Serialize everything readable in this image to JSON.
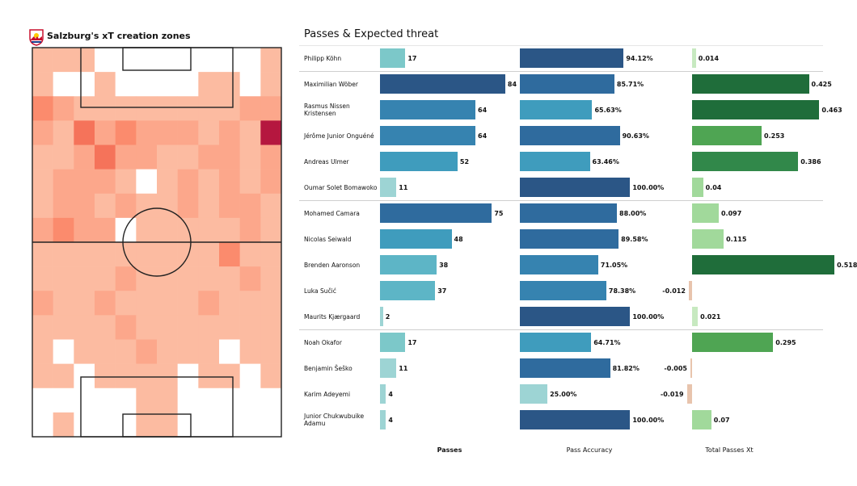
{
  "pitch_title": "Salzburg's xT creation zones",
  "logo_icon": "red-bull-salzburg-crest",
  "table_title": "Passes & Expected threat",
  "headers": {
    "passes": "Passes",
    "accuracy": "Pass Accuracy",
    "xt": "Total Passes Xt"
  },
  "chart_data": [
    {
      "type": "heatmap",
      "title": "Salzburg's xT creation zones",
      "grid": [
        [
          1,
          1,
          1,
          0,
          0,
          0,
          0,
          0,
          0,
          0,
          0,
          1
        ],
        [
          1,
          0,
          0,
          1,
          0,
          0,
          0,
          0,
          1,
          1,
          0,
          1
        ],
        [
          3,
          2,
          1,
          1,
          1,
          1,
          1,
          1,
          1,
          1,
          2,
          2
        ],
        [
          2,
          1,
          4,
          2,
          3,
          2,
          2,
          2,
          1,
          2,
          1,
          8
        ],
        [
          1,
          1,
          2,
          4,
          2,
          2,
          1,
          1,
          2,
          2,
          1,
          2
        ],
        [
          1,
          2,
          2,
          2,
          1,
          0,
          1,
          2,
          1,
          2,
          1,
          2
        ],
        [
          1,
          2,
          2,
          1,
          2,
          1,
          1,
          2,
          1,
          2,
          2,
          1
        ],
        [
          2,
          3,
          2,
          2,
          0,
          1,
          1,
          1,
          1,
          1,
          2,
          1
        ],
        [
          1,
          1,
          1,
          1,
          1,
          1,
          1,
          1,
          1,
          3,
          1,
          1
        ],
        [
          1,
          1,
          1,
          1,
          2,
          1,
          1,
          1,
          1,
          1,
          2,
          1
        ],
        [
          2,
          1,
          1,
          2,
          1,
          1,
          1,
          1,
          2,
          1,
          1,
          1
        ],
        [
          1,
          1,
          1,
          1,
          2,
          1,
          1,
          1,
          1,
          1,
          1,
          1
        ],
        [
          1,
          0,
          1,
          1,
          1,
          2,
          1,
          1,
          1,
          0,
          1,
          1
        ],
        [
          1,
          1,
          0,
          1,
          1,
          1,
          1,
          0,
          1,
          1,
          0,
          1
        ],
        [
          0,
          0,
          0,
          0,
          0,
          1,
          1,
          0,
          0,
          0,
          0,
          0
        ],
        [
          0,
          1,
          0,
          0,
          0,
          1,
          1,
          0,
          0,
          0,
          0,
          0
        ]
      ],
      "palette": [
        "#ffffff",
        "#fcbba1",
        "#fca78b",
        "#fb8b6d",
        "#f5735a",
        "#e34a33",
        "#cb181d",
        "#a50f15",
        "#b5173f"
      ]
    },
    {
      "type": "bar",
      "title": "Passes & Expected threat",
      "players": [
        {
          "name": "Philipp Köhn",
          "passes": 17,
          "accuracy": 94.12,
          "xt": 0.014
        },
        {
          "name": "Maximilian Wöber",
          "passes": 84,
          "accuracy": 85.71,
          "xt": 0.425
        },
        {
          "name": "Rasmus Nissen Kristensen",
          "passes": 64,
          "accuracy": 65.63,
          "xt": 0.463
        },
        {
          "name": "Jérôme Junior Onguéné",
          "passes": 64,
          "accuracy": 90.63,
          "xt": 0.253
        },
        {
          "name": "Andreas Ulmer",
          "passes": 52,
          "accuracy": 63.46,
          "xt": 0.386
        },
        {
          "name": "Oumar Solet Bomawoko",
          "passes": 11,
          "accuracy": 100.0,
          "xt": 0.04
        },
        {
          "name": "Mohamed Camara",
          "passes": 75,
          "accuracy": 88.0,
          "xt": 0.097
        },
        {
          "name": "Nicolas Seiwald",
          "passes": 48,
          "accuracy": 89.58,
          "xt": 0.115
        },
        {
          "name": "Brenden  Aaronson",
          "passes": 38,
          "accuracy": 71.05,
          "xt": 0.518
        },
        {
          "name": "Luka Sučić",
          "passes": 37,
          "accuracy": 78.38,
          "xt": -0.012
        },
        {
          "name": "Maurits Kjærgaard",
          "passes": 2,
          "accuracy": 100.0,
          "xt": 0.021
        },
        {
          "name": "Noah Okafor",
          "passes": 17,
          "accuracy": 64.71,
          "xt": 0.295
        },
        {
          "name": "Benjamin Šeško",
          "passes": 11,
          "accuracy": 81.82,
          "xt": -0.005
        },
        {
          "name": "Karim Adeyemi",
          "passes": 4,
          "accuracy": 25.0,
          "xt": -0.019
        },
        {
          "name": "Junior Chukwubuike Adamu",
          "passes": 4,
          "accuracy": 100.0,
          "xt": 0.07
        }
      ],
      "labels": {
        "passes": [
          "17",
          "84",
          "64",
          "64",
          "52",
          "11",
          "75",
          "48",
          "38",
          "37",
          "2",
          "17",
          "11",
          "4",
          "4"
        ],
        "accuracy": [
          "94.12%",
          "85.71%",
          "65.63%",
          "90.63%",
          "63.46%",
          "100.00%",
          "88.00%",
          "89.58%",
          "71.05%",
          "78.38%",
          "100.00%",
          "64.71%",
          "81.82%",
          "25.00%",
          "100.00%"
        ],
        "xt": [
          "0.014",
          "0.425",
          "0.463",
          "0.253",
          "0.386",
          "0.04",
          "0.097",
          "0.115",
          "0.518",
          "-0.012",
          "0.021",
          "0.295",
          "-0.005",
          "-0.019",
          "0.07"
        ]
      },
      "group_breaks_after": [
        0,
        5,
        10
      ]
    }
  ]
}
